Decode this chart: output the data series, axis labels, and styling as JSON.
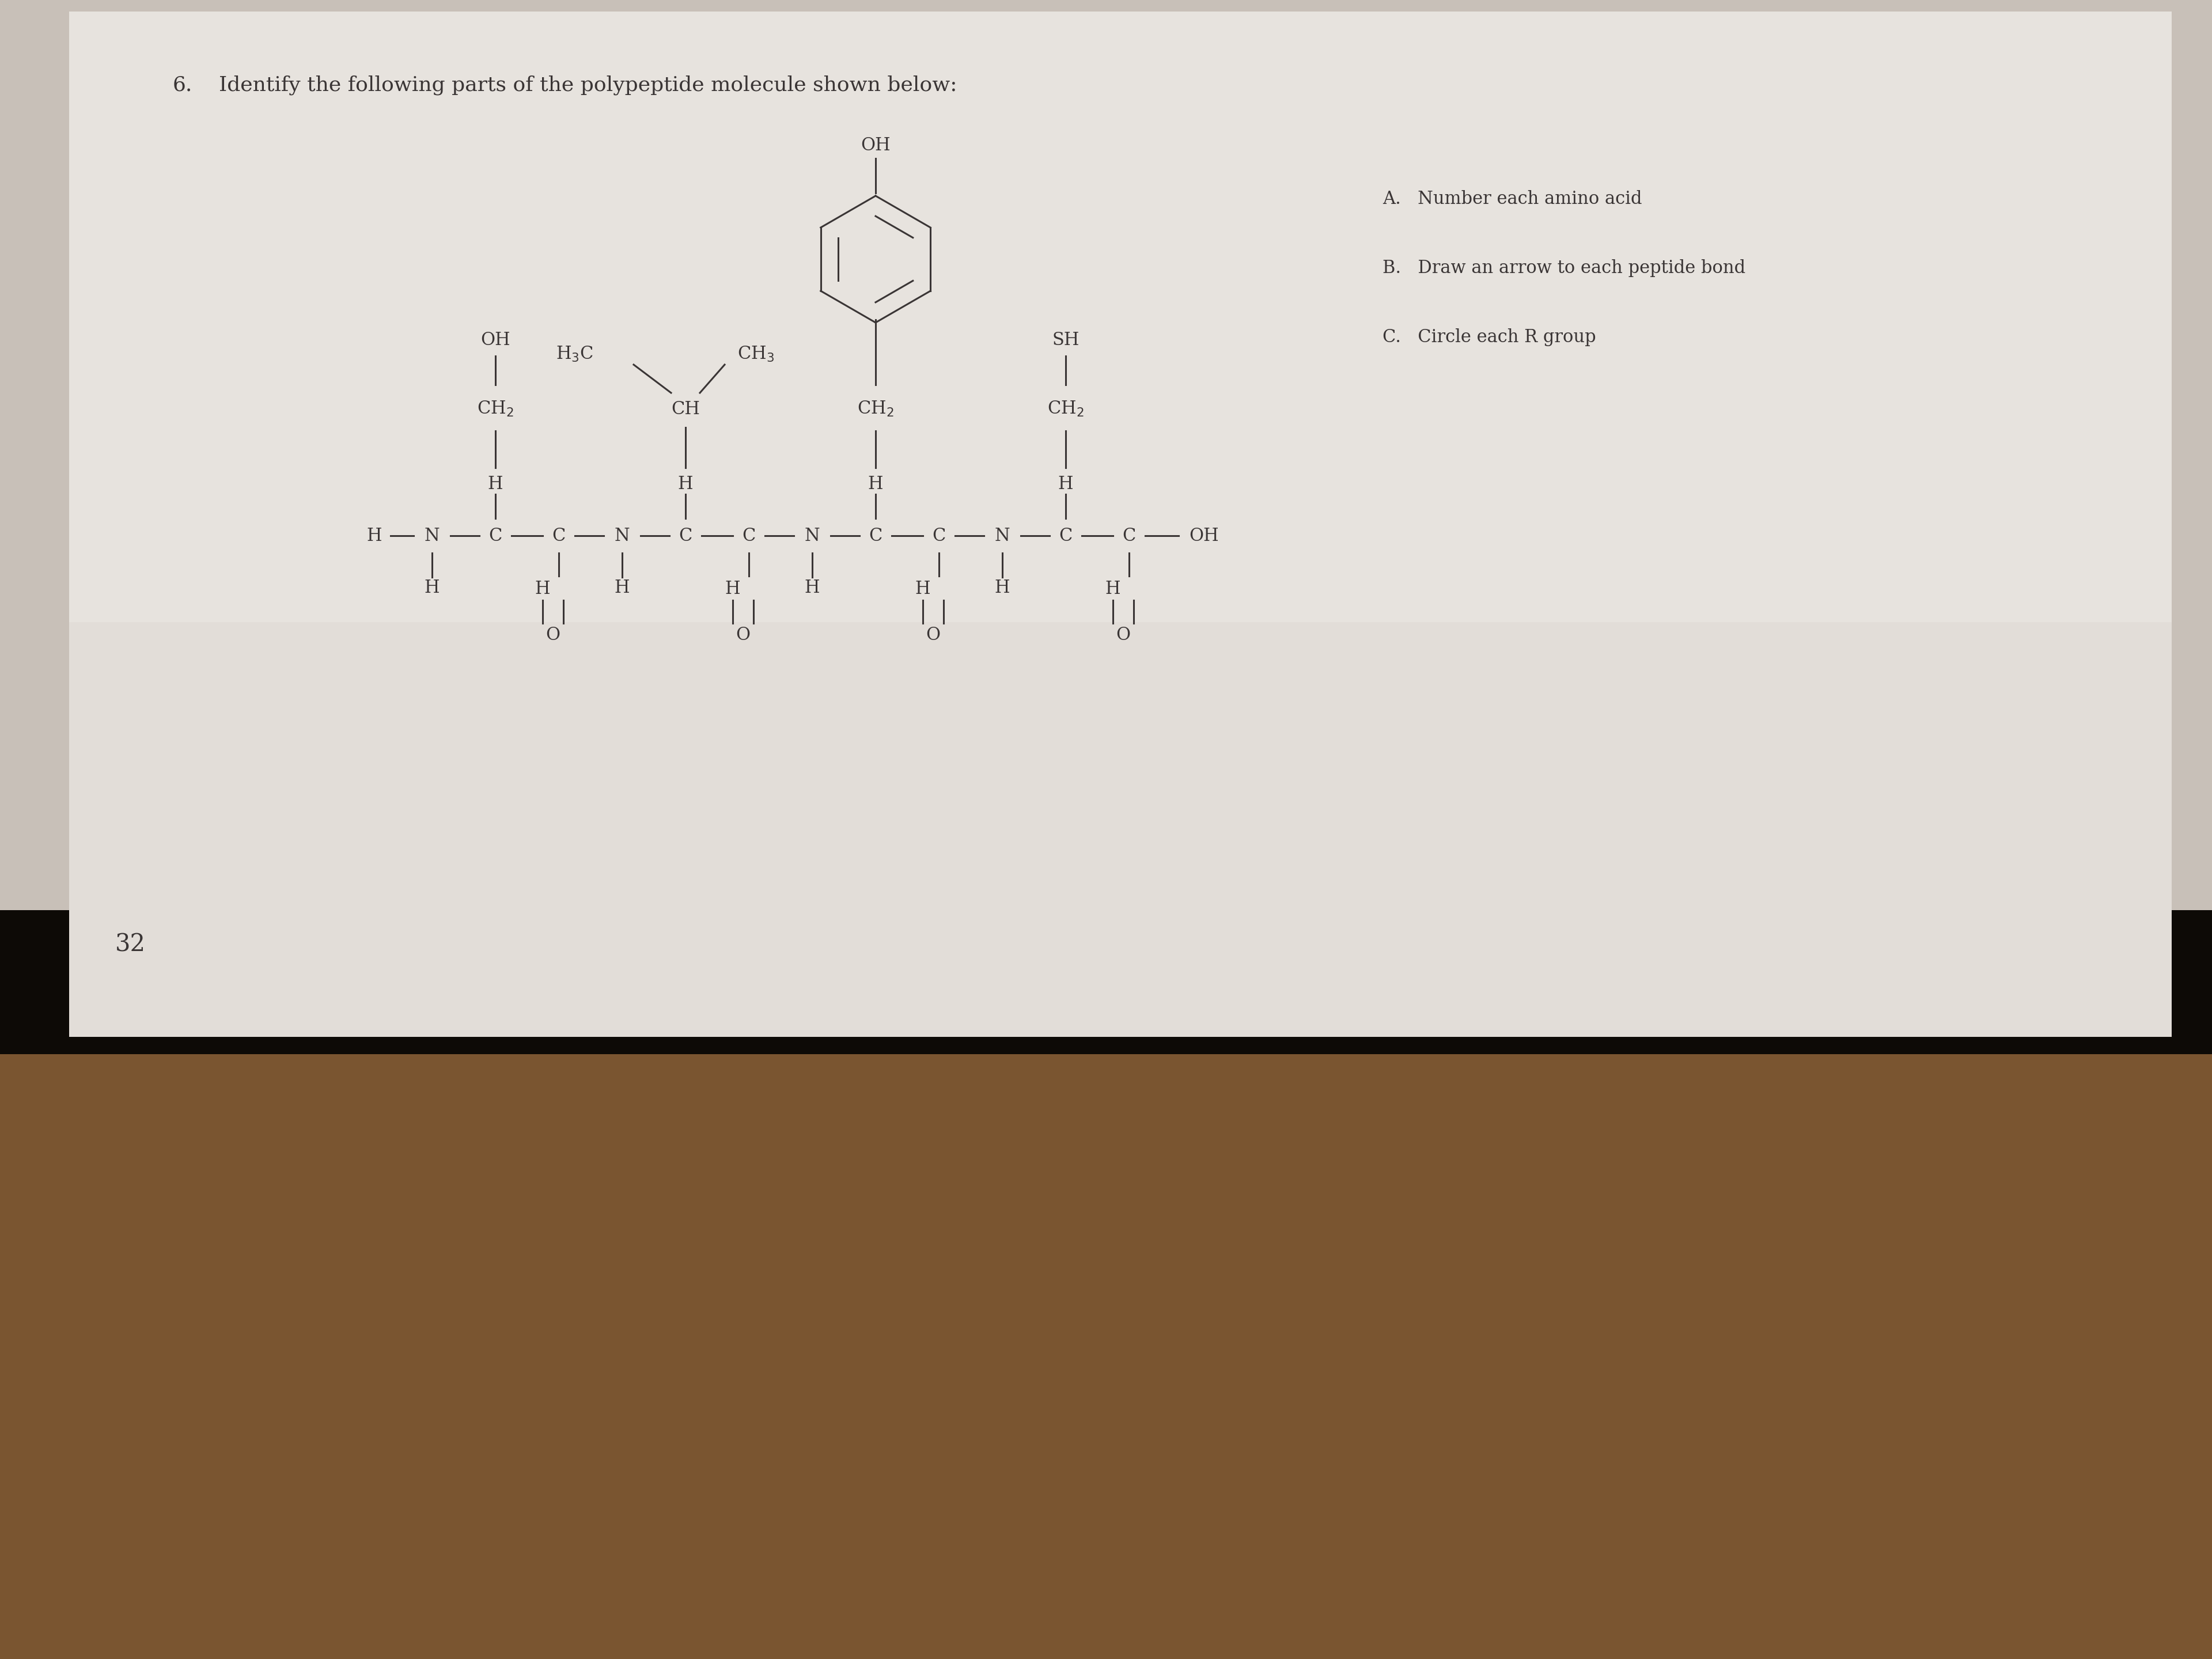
{
  "title_num": "6.",
  "title_text": "   Identify the following parts of the polypeptide molecule shown below:",
  "instructions": [
    "A.   Number each amino acid",
    "B.   Draw an arrow to each peptide bond",
    "C.   Circle each R group"
  ],
  "bg_color": "#c8c0b8",
  "paper_color": "#e8e4e0",
  "text_color": "#3a3535",
  "page_number": "32",
  "molecule_color": "#3a3535",
  "bottom_dark_color": "#1a1208",
  "bottom_wood_color": "#8b6040"
}
